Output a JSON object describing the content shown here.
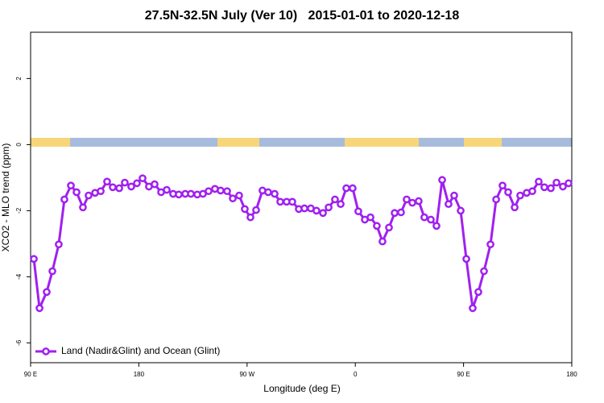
{
  "chart_data": {
    "type": "line",
    "title": "27.5N-32.5N July (Ver 10)   2015-01-01 to 2020-12-18",
    "xlabel": "Longitude (deg E)",
    "ylabel": "XCO2 - MLO trend (ppm)",
    "xlim": [
      90,
      540
    ],
    "xticks": [
      {
        "value": 90,
        "label": "90 E"
      },
      180,
      {
        "value": 270,
        "label": "90 W"
      },
      {
        "value": 360,
        "label": "0"
      },
      {
        "value": 450,
        "label": "90 E"
      },
      {
        "value": 540,
        "label": "180"
      }
    ],
    "ylim": [
      -6.6,
      3.4
    ],
    "yticks": [
      -6,
      -4,
      -2,
      0,
      2
    ],
    "grid": false,
    "legend": "bottom-left",
    "x": [
      92.7,
      97.4,
      103.4,
      108.1,
      113.4,
      118.1,
      123.5,
      128.2,
      133.5,
      138.2,
      143.6,
      148.3,
      153.6,
      158.3,
      163.7,
      168.3,
      173.7,
      178.4,
      183.1,
      188.4,
      193.1,
      198.5,
      203.2,
      208.5,
      213.2,
      218.6,
      223.3,
      228.6,
      233.3,
      238.0,
      243.3,
      248.0,
      253.4,
      258.1,
      263.4,
      268.1,
      272.8,
      277.5,
      282.8,
      287.5,
      292.9,
      297.6,
      302.9,
      307.6,
      313.0,
      317.7,
      323.0,
      327.7,
      333.1,
      337.8,
      343.1,
      347.8,
      352.5,
      357.8,
      362.5,
      367.9,
      372.6,
      377.9,
      382.6,
      388.0,
      392.7,
      398.0,
      402.7,
      407.4,
      412.7,
      417.4,
      422.8,
      427.5,
      432.2,
      437.5,
      442.2,
      447.6,
      452.3,
      457.6,
      462.3,
      467.0,
      472.4,
      477.1,
      482.4,
      487.1,
      492.5,
      497.1,
      502.5,
      507.2,
      512.5,
      517.2,
      522.6,
      527.3,
      532.6,
      537.3
    ],
    "series": [
      {
        "name": "Land (Nadir&Glint) and Ocean (Glint)",
        "color": "#a020f0",
        "values": [
          -3.46,
          -4.95,
          -4.46,
          -3.83,
          -3.02,
          -1.66,
          -1.24,
          -1.44,
          -1.9,
          -1.54,
          -1.46,
          -1.41,
          -1.12,
          -1.29,
          -1.32,
          -1.15,
          -1.27,
          -1.17,
          -1.02,
          -1.27,
          -1.2,
          -1.44,
          -1.37,
          -1.49,
          -1.51,
          -1.49,
          -1.49,
          -1.51,
          -1.49,
          -1.41,
          -1.34,
          -1.39,
          -1.41,
          -1.63,
          -1.54,
          -1.95,
          -2.2,
          -1.98,
          -1.39,
          -1.44,
          -1.49,
          -1.73,
          -1.73,
          -1.73,
          -1.95,
          -1.93,
          -1.93,
          -2.0,
          -2.07,
          -1.9,
          -1.66,
          -1.8,
          -1.32,
          -1.32,
          -2.02,
          -2.27,
          -2.2,
          -2.46,
          -2.93,
          -2.51,
          -2.07,
          -2.05,
          -1.66,
          -1.76,
          -1.71,
          -2.2,
          -2.27,
          -2.46,
          -1.07,
          -1.8,
          -1.54,
          -2.0,
          -3.46,
          -4.95,
          -4.46,
          -3.83,
          -3.02,
          -1.66,
          -1.24,
          -1.44,
          -1.9,
          -1.54,
          -1.46,
          -1.41,
          -1.12,
          -1.29,
          -1.32,
          -1.15,
          -1.27,
          -1.17
        ]
      }
    ]
  }
}
